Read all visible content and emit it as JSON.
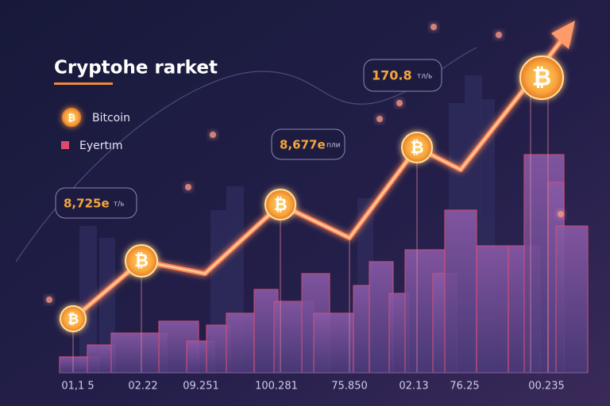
{
  "header": {
    "title": "Cryptohe rarket"
  },
  "legend": [
    {
      "label": "Bitcoin"
    },
    {
      "label": "Eyertım"
    }
  ],
  "callouts": [
    {
      "value": "8,725e",
      "unit": "т/ь"
    },
    {
      "value": "8,677e",
      "unit": "пли"
    },
    {
      "value": "170.8",
      "unit": "тл/ь"
    }
  ],
  "x_labels": [
    "01,1 5",
    "02.22",
    "09.251",
    "100.281",
    "75.850",
    "02.13",
    "76.25",
    "00.235"
  ]
}
